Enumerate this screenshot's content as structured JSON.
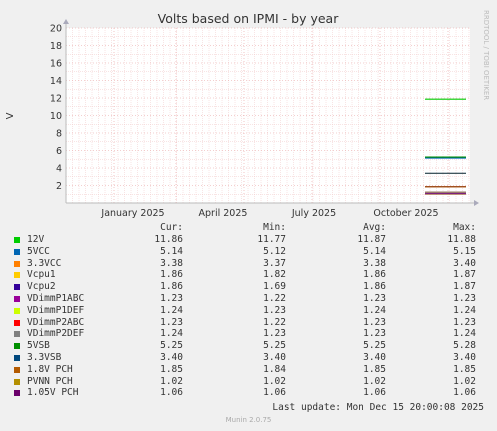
{
  "chart_data": {
    "type": "line",
    "title": "Volts based on IPMI - by year",
    "ylabel": "V",
    "xlabel": "",
    "watermark": "RRDTOOL / TOBI OETIKER",
    "x_ticks": [
      "January 2025",
      "April 2025",
      "July 2025",
      "October 2025"
    ],
    "y_ticks": [
      2,
      4,
      6,
      8,
      10,
      12,
      14,
      16,
      18,
      20
    ],
    "ylim": [
      0,
      20
    ],
    "grid": true,
    "series": [
      {
        "name": "12V",
        "color": "#00cc00",
        "cur": "11.86",
        "min": "11.77",
        "avg": "11.87",
        "max": "11.88",
        "value": 11.87
      },
      {
        "name": "5VCC",
        "color": "#0066b3",
        "cur": "5.14",
        "min": "5.12",
        "avg": "5.14",
        "max": "5.15",
        "value": 5.14
      },
      {
        "name": "3.3VCC",
        "color": "#ff8000",
        "cur": "3.38",
        "min": "3.37",
        "avg": "3.38",
        "max": "3.40",
        "value": 3.38
      },
      {
        "name": "Vcpu1",
        "color": "#ffcc00",
        "cur": "1.86",
        "min": "1.82",
        "avg": "1.86",
        "max": "1.87",
        "value": 1.86
      },
      {
        "name": "Vcpu2",
        "color": "#330099",
        "cur": "1.86",
        "min": "1.69",
        "avg": "1.86",
        "max": "1.87",
        "value": 1.86
      },
      {
        "name": "VDimmP1ABC",
        "color": "#990099",
        "cur": "1.23",
        "min": "1.22",
        "avg": "1.23",
        "max": "1.23",
        "value": 1.23
      },
      {
        "name": "VDimmP1DEF",
        "color": "#ccff00",
        "cur": "1.24",
        "min": "1.23",
        "avg": "1.24",
        "max": "1.24",
        "value": 1.24
      },
      {
        "name": "VDimmP2ABC",
        "color": "#ff0000",
        "cur": "1.23",
        "min": "1.22",
        "avg": "1.23",
        "max": "1.23",
        "value": 1.23
      },
      {
        "name": "VDimmP2DEF",
        "color": "#808080",
        "cur": "1.24",
        "min": "1.23",
        "avg": "1.23",
        "max": "1.24",
        "value": 1.24
      },
      {
        "name": "5VSB",
        "color": "#008f00",
        "cur": "5.25",
        "min": "5.25",
        "avg": "5.25",
        "max": "5.28",
        "value": 5.25
      },
      {
        "name": "3.3VSB",
        "color": "#00487d",
        "cur": "3.40",
        "min": "3.40",
        "avg": "3.40",
        "max": "3.40",
        "value": 3.4
      },
      {
        "name": "1.8V PCH",
        "color": "#b35a00",
        "cur": "1.85",
        "min": "1.84",
        "avg": "1.85",
        "max": "1.85",
        "value": 1.85
      },
      {
        "name": "PVNN PCH",
        "color": "#b38f00",
        "cur": "1.02",
        "min": "1.02",
        "avg": "1.02",
        "max": "1.02",
        "value": 1.02
      },
      {
        "name": "1.05V PCH",
        "color": "#6b006b",
        "cur": "1.06",
        "min": "1.06",
        "avg": "1.06",
        "max": "1.06",
        "value": 1.06
      }
    ]
  },
  "legend_headers": {
    "cur": "Cur:",
    "min": "Min:",
    "avg": "Avg:",
    "max": "Max:"
  },
  "footer": {
    "last_update": "Last update: Mon Dec 15 20:00:08 2025",
    "version": "Munin 2.0.75"
  }
}
